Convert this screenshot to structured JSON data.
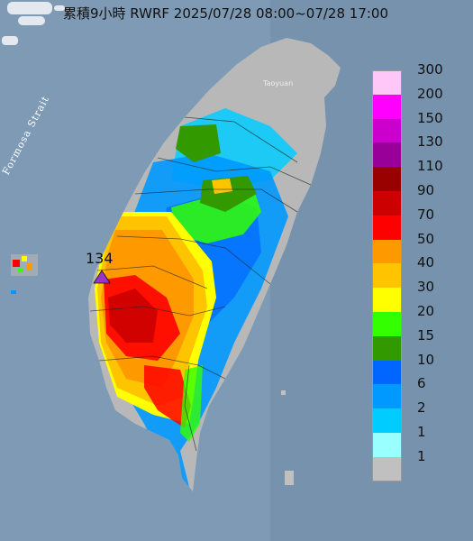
{
  "title": "累積9小時 RWRF 2025/07/28 08:00~07/28 17:00",
  "labels": {
    "strait": "Formosa Strait",
    "taoyuan": "Taoyuan",
    "max_value": "134"
  },
  "legend": {
    "bands": [
      {
        "label": "300",
        "color": "#ffc6f8"
      },
      {
        "label": "200",
        "color": "#ff00ff"
      },
      {
        "label": "150",
        "color": "#cc00cc"
      },
      {
        "label": "130",
        "color": "#990099"
      },
      {
        "label": "110",
        "color": "#990000"
      },
      {
        "label": "90",
        "color": "#cc0000"
      },
      {
        "label": "70",
        "color": "#ff0000"
      },
      {
        "label": "50",
        "color": "#ff9900"
      },
      {
        "label": "40",
        "color": "#ffc400"
      },
      {
        "label": "30",
        "color": "#ffff00"
      },
      {
        "label": "20",
        "color": "#33ff00"
      },
      {
        "label": "15",
        "color": "#339900"
      },
      {
        "label": "10",
        "color": "#0066ff"
      },
      {
        "label": "6",
        "color": "#0099ff"
      },
      {
        "label": "2",
        "color": "#00ccff"
      },
      {
        "label": "1",
        "color": "#99ffff"
      },
      {
        "label": "",
        "color": "#c0c0c0"
      }
    ],
    "bottom_label": "1"
  },
  "colors": {
    "sea": "#7e9ab4",
    "land": "#b8b8b8",
    "max_marker": "#9933cc"
  }
}
